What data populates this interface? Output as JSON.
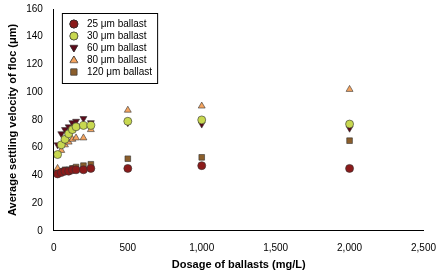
{
  "chart_data": {
    "type": "scatter",
    "x_label": "Dosage of ballasts (mg/L)",
    "y_label": "Average settling velocity of floc (μm)",
    "xlim": [
      0,
      2500
    ],
    "xticks": [
      0,
      500,
      1000,
      1500,
      2000,
      2500
    ],
    "ylim": [
      0,
      160
    ],
    "yticks": [
      0,
      20,
      40,
      60,
      80,
      100,
      120,
      140,
      160
    ],
    "grid": false,
    "legend": "top-left",
    "series": [
      {
        "name": "25 μm ballast",
        "color": "#8b1a1a",
        "marker": "circle",
        "x": [
          25,
          50,
          75,
          100,
          125,
          150,
          200,
          250,
          500,
          1000,
          2000
        ],
        "values": [
          41,
          42,
          43,
          43,
          44,
          44,
          44,
          45,
          45,
          47,
          45
        ]
      },
      {
        "name": "30 μm ballast",
        "color": "#c8d850",
        "marker": "circle",
        "x": [
          25,
          50,
          75,
          100,
          125,
          150,
          200,
          250,
          500,
          1000,
          2000
        ],
        "values": [
          55,
          62,
          66,
          70,
          73,
          75,
          76,
          76,
          79,
          80,
          77
        ]
      },
      {
        "name": "60 μm ballast",
        "color": "#5c0a1a",
        "marker": "triangle_down",
        "x": [
          25,
          50,
          75,
          100,
          125,
          150,
          200,
          250,
          500,
          1000,
          2000
        ],
        "values": [
          62,
          70,
          73,
          75,
          78,
          79,
          81,
          78,
          78,
          77,
          74
        ]
      },
      {
        "name": "80 μm ballast",
        "color": "#f4a460",
        "marker": "triangle",
        "x": [
          25,
          50,
          75,
          100,
          125,
          150,
          200,
          250,
          500,
          1000,
          2000
        ],
        "values": [
          45,
          58,
          62,
          64,
          66,
          67,
          67,
          73,
          87,
          90,
          102
        ]
      },
      {
        "name": "120 μm ballast",
        "color": "#8b5e2b",
        "marker": "square",
        "x": [
          25,
          50,
          75,
          100,
          125,
          150,
          200,
          250,
          500,
          1000,
          2000
        ],
        "values": [
          42,
          43,
          44,
          44,
          45,
          46,
          47,
          48,
          52,
          53,
          65
        ]
      }
    ]
  }
}
